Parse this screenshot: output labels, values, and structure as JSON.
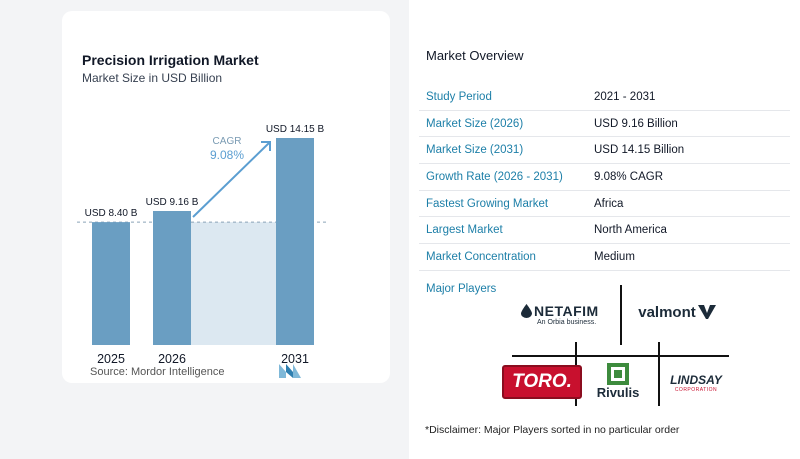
{
  "chart": {
    "title": "Precision Irrigation Market",
    "subtitle": "Market Size in USD Billion",
    "cagr_label": "CAGR",
    "cagr_value": "9.08%",
    "source": "Source:  Mordor Intelligence"
  },
  "chart_data": {
    "type": "bar",
    "title": "Precision Irrigation Market",
    "subtitle": "Market Size in USD Billion",
    "categories": [
      "2025",
      "2026",
      "2031"
    ],
    "values": [
      8.4,
      9.16,
      14.15
    ],
    "data_labels": [
      "USD 8.40 B",
      "USD 9.16 B",
      "USD 14.15 B"
    ],
    "ylim": [
      0,
      15
    ],
    "grid": false,
    "annotations": [
      "CAGR",
      "9.08%"
    ],
    "colors": {
      "bar": "#6a9ec2",
      "bar_light": "#9cc2da",
      "band": "#dce8f1",
      "accent": "#5b9ed1"
    }
  },
  "overview": {
    "title": "Market Overview",
    "rows": [
      {
        "label": "Study Period",
        "value": "2021 - 2031"
      },
      {
        "label": "Market Size (2026)",
        "value": "USD 9.16 Billion"
      },
      {
        "label": "Market Size (2031)",
        "value": "USD 14.15 Billion"
      },
      {
        "label": "Growth Rate (2026 - 2031)",
        "value": "9.08% CAGR"
      },
      {
        "label": "Fastest Growing Market",
        "value": "Africa"
      },
      {
        "label": "Largest Market",
        "value": "North America"
      },
      {
        "label": "Market Concentration",
        "value": "Medium"
      }
    ]
  },
  "players": {
    "label": "Major Players",
    "netafim": {
      "name": "NETAFIM",
      "tag": "An Orbia business."
    },
    "valmont": {
      "name": "valmont"
    },
    "toro": {
      "name": "TORO."
    },
    "rivulis": {
      "name": "Rivulis"
    },
    "lindsay": {
      "name": "LINDSAY",
      "tag": "CORPORATION"
    }
  },
  "disclaimer": "*Disclaimer: Major Players sorted in no particular order"
}
